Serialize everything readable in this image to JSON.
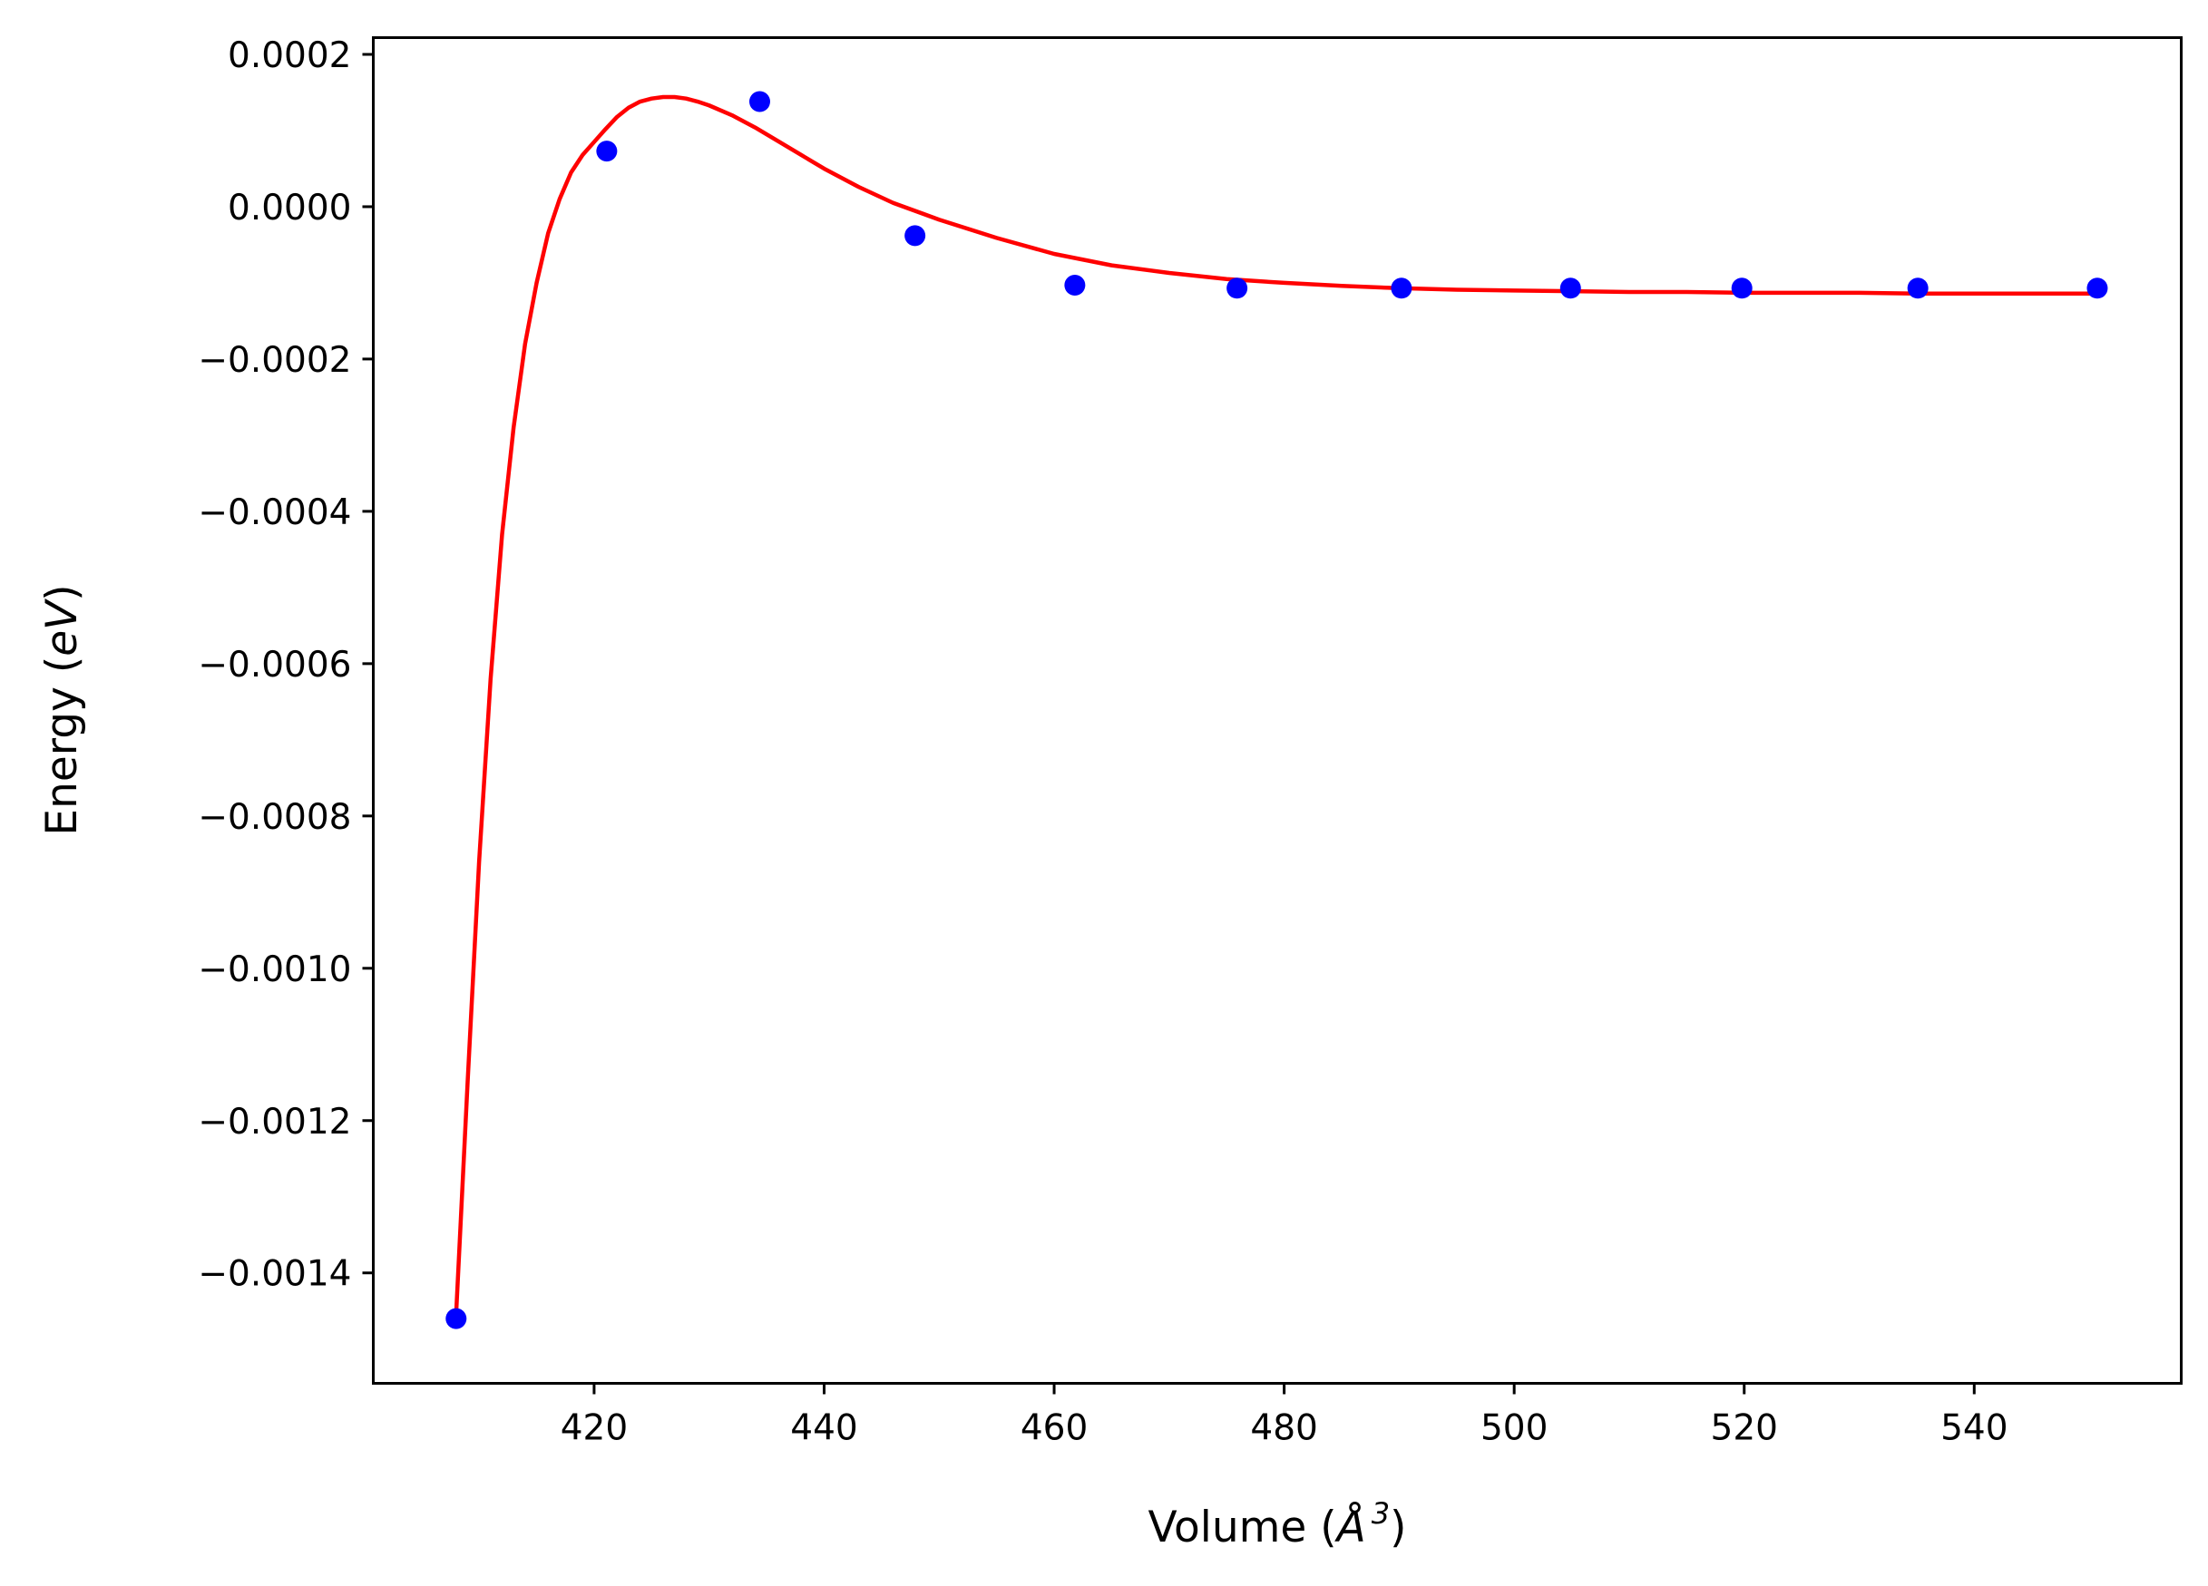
{
  "chart_data": {
    "type": "scatter",
    "title": "",
    "xlabel": {
      "prefix": "Volume (",
      "symbol": "Å",
      "superscript": "3",
      "suffix": ")"
    },
    "ylabel": {
      "prefix": "Energy (",
      "unit": "eV",
      "suffix": ")"
    },
    "xlim": [
      400.8,
      558.0
    ],
    "ylim": [
      -0.001545,
      0.000222
    ],
    "x_ticks": [
      420,
      440,
      460,
      480,
      500,
      520,
      540
    ],
    "x_tick_labels": [
      "420",
      "440",
      "460",
      "480",
      "500",
      "520",
      "540"
    ],
    "y_ticks": [
      0.0002,
      0.0,
      -0.0002,
      -0.0004,
      -0.0006,
      -0.0008,
      -0.001,
      -0.0012,
      -0.0014
    ],
    "y_tick_labels": [
      "0.0002",
      "0.0000",
      "−0.0002",
      "−0.0004",
      "−0.0006",
      "−0.0008",
      "−0.0010",
      "−0.0012",
      "−0.0014"
    ],
    "grid": false,
    "series": [
      {
        "kind": "points",
        "color": "#0000ff",
        "x": [
          408.0,
          421.1,
          434.4,
          447.9,
          461.8,
          475.9,
          490.2,
          504.9,
          519.8,
          535.1,
          550.7
        ],
        "y": [
          -0.00146,
          7.3e-05,
          0.000138,
          -3.8e-05,
          -0.000103,
          -0.000107,
          -0.000107,
          -0.000107,
          -0.000107,
          -0.000107,
          -0.000107
        ]
      },
      {
        "kind": "fit-curve",
        "color": "#ff0000",
        "x": [
          408,
          409,
          410,
          411,
          412,
          413,
          414,
          415,
          416,
          417,
          418,
          419,
          420,
          421,
          422,
          423,
          424,
          425,
          426,
          427,
          428,
          429,
          430,
          432,
          434,
          436,
          438,
          440,
          443,
          446,
          450,
          455,
          460,
          465,
          470,
          475,
          480,
          485,
          490,
          495,
          500,
          505,
          510,
          515,
          520,
          525,
          530,
          535,
          540,
          545,
          550.7
        ],
        "y": [
          -0.001455,
          -0.00115,
          -0.00086,
          -0.00062,
          -0.00043,
          -0.00029,
          -0.00018,
          -0.0001,
          -3.5e-05,
          1e-05,
          4.5e-05,
          6.8e-05,
          8.5e-05,
          0.000102,
          0.000118,
          0.00013,
          0.000138,
          0.000142,
          0.000144,
          0.000144,
          0.000142,
          0.000138,
          0.000133,
          0.00012,
          0.000104,
          8.6e-05,
          6.8e-05,
          5e-05,
          2.6e-05,
          5e-06,
          -1.7e-05,
          -4.1e-05,
          -6.2e-05,
          -7.7e-05,
          -8.7e-05,
          -9.5e-05,
          -0.0001,
          -0.000104,
          -0.000107,
          -0.000109,
          -0.00011,
          -0.000111,
          -0.000112,
          -0.000112,
          -0.000113,
          -0.000113,
          -0.000113,
          -0.000114,
          -0.000114,
          -0.000114,
          -0.000114
        ]
      }
    ]
  }
}
